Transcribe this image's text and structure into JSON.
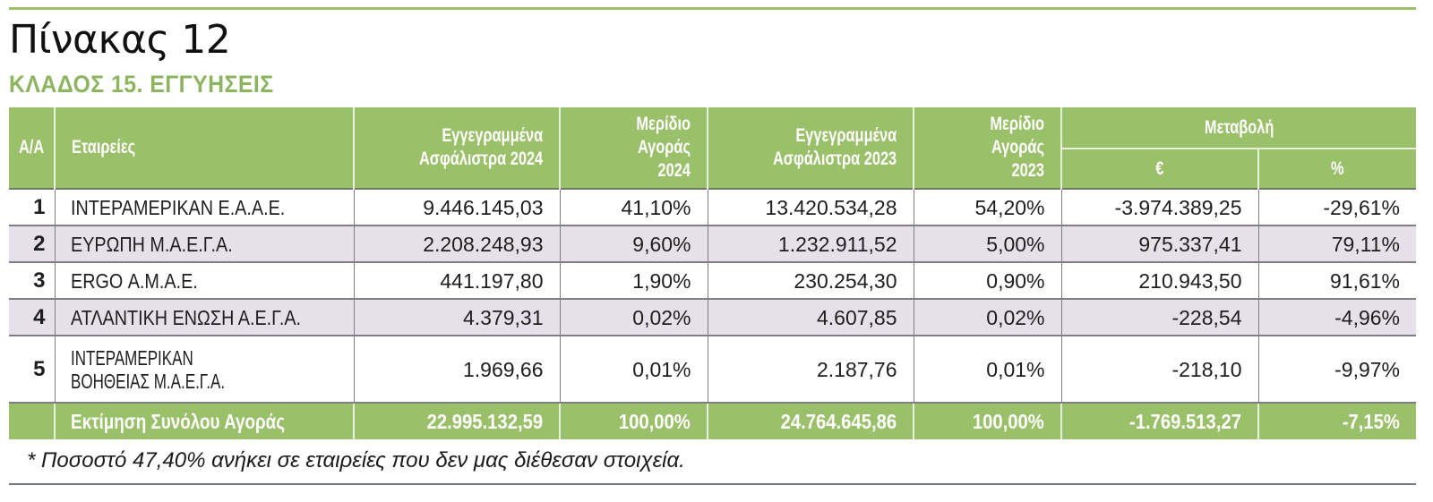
{
  "header": {
    "title": "Πίνακας 12",
    "subtitle": "ΚΛΑΔΟΣ 15. ΕΓΓΥΗΣΕΙΣ"
  },
  "colors": {
    "accent_green": "#9bc06a",
    "subtitle_green": "#8db560",
    "stripe": "#e6e1e8",
    "border": "#7d7d82"
  },
  "table": {
    "columns": {
      "aa": "Α/Α",
      "company": "Εταιρείες",
      "premiums_2024_l1": "Εγγεγραμμένα",
      "premiums_2024_l2": "Ασφάλιστρα 2024",
      "share_2024_l1": "Μερίδιο",
      "share_2024_l2": "Αγοράς 2024",
      "premiums_2023_l1": "Εγγεγραμμένα",
      "premiums_2023_l2": "Ασφάλιστρα 2023",
      "share_2023_l1": "Μερίδιο",
      "share_2023_l2": "Αγοράς 2023",
      "change": "Μεταβολή",
      "change_eur": "€",
      "change_pct": "%"
    },
    "rows": [
      {
        "aa": "1",
        "company": "ΙΝΤΕΡΑΜΕΡΙΚΑΝ Ε.Α.Α.Ε.",
        "premiums_2024": "9.446.145,03",
        "share_2024": "41,10%",
        "premiums_2023": "13.420.534,28",
        "share_2023": "54,20%",
        "change_eur": "-3.974.389,25",
        "change_pct": "-29,61%"
      },
      {
        "aa": "2",
        "company": "ΕΥΡΩΠΗ Μ.Α.Ε.Γ.Α.",
        "premiums_2024": "2.208.248,93",
        "share_2024": "9,60%",
        "premiums_2023": "1.232.911,52",
        "share_2023": "5,00%",
        "change_eur": "975.337,41",
        "change_pct": "79,11%"
      },
      {
        "aa": "3",
        "company": "ERGO Α.Μ.Α.Ε.",
        "premiums_2024": "441.197,80",
        "share_2024": "1,90%",
        "premiums_2023": "230.254,30",
        "share_2023": "0,90%",
        "change_eur": "210.943,50",
        "change_pct": "91,61%"
      },
      {
        "aa": "4",
        "company": "ΑΤΛΑΝΤΙΚΗ ΕΝΩΣΗ Α.Ε.Γ.Α.",
        "premiums_2024": "4.379,31",
        "share_2024": "0,02%",
        "premiums_2023": "4.607,85",
        "share_2023": "0,02%",
        "change_eur": "-228,54",
        "change_pct": "-4,96%"
      },
      {
        "aa": "5",
        "company_l1": "ΙΝΤΕΡΑΜΕΡΙΚΑΝ",
        "company_l2": "ΒΟΗΘΕΙΑΣ Μ.Α.Ε.Γ.Α.",
        "premiums_2024": "1.969,66",
        "share_2024": "0,01%",
        "premiums_2023": "2.187,76",
        "share_2023": "0,01%",
        "change_eur": "-218,10",
        "change_pct": "-9,97%"
      }
    ],
    "total": {
      "label": "Εκτίμηση Συνόλου Αγοράς",
      "premiums_2024": "22.995.132,59",
      "share_2024": "100,00%",
      "premiums_2023": "24.764.645,86",
      "share_2023": "100,00%",
      "change_eur": "-1.769.513,27",
      "change_pct": "-7,15%"
    }
  },
  "footnote": "* Ποσοστό 47,40% ανήκει σε εταιρείες που δεν μας διέθεσαν στοιχεία."
}
